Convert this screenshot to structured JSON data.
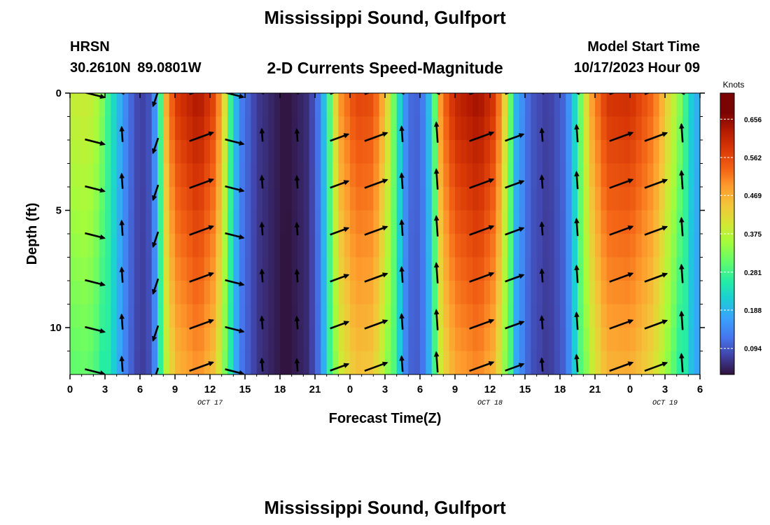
{
  "header": {
    "title": "Mississippi Sound, Gulfport",
    "station": "HRSN",
    "coords": "30.2610N  89.0801W",
    "subtitle": "2-D Currents Speed-Magnitude",
    "start_label": "Model Start Time",
    "start_value": "10/17/2023 Hour 09"
  },
  "footer": {
    "title": "Mississippi Sound, Gulfport"
  },
  "chart_data": {
    "type": "heatmap",
    "title": "2-D Currents Speed-Magnitude",
    "xlabel": "Forecast Time(Z)",
    "ylabel": "Depth (ft)",
    "x_ticks": [
      "0",
      "3",
      "6",
      "9",
      "12",
      "15",
      "18",
      "21",
      "0",
      "3",
      "6",
      "9",
      "12",
      "15",
      "18",
      "21",
      "0",
      "3",
      "6"
    ],
    "date_labels": [
      {
        "text": "OCT 17",
        "hours_from_start": 12
      },
      {
        "text": "OCT 18",
        "hours_from_start": 36
      },
      {
        "text": "OCT 19",
        "hours_from_start": 51
      }
    ],
    "x_range_hours": [
      0,
      54
    ],
    "y_ticks": [
      "0",
      "5",
      "10"
    ],
    "ylim": [
      0,
      12
    ],
    "y_inverted": true,
    "colorbar": {
      "label": "Knots",
      "ticks": [
        "0.656",
        "0.562",
        "0.469",
        "0.375",
        "0.281",
        "0.188",
        "0.094"
      ],
      "range": [
        0.03,
        0.72
      ]
    },
    "speed_profile": [
      {
        "t": 0,
        "s": 0.41
      },
      {
        "t": 1.5,
        "s": 0.42
      },
      {
        "t": 2.5,
        "s": 0.38
      },
      {
        "t": 3.5,
        "s": 0.27
      },
      {
        "t": 4.2,
        "s": 0.2
      },
      {
        "t": 5,
        "s": 0.13
      },
      {
        "t": 6,
        "s": 0.07
      },
      {
        "t": 7,
        "s": 0.1
      },
      {
        "t": 7.6,
        "s": 0.24
      },
      {
        "t": 8.2,
        "s": 0.5
      },
      {
        "t": 9,
        "s": 0.62
      },
      {
        "t": 11,
        "s": 0.68
      },
      {
        "t": 12.5,
        "s": 0.6
      },
      {
        "t": 13.2,
        "s": 0.45
      },
      {
        "t": 13.8,
        "s": 0.28
      },
      {
        "t": 14.5,
        "s": 0.15
      },
      {
        "t": 16,
        "s": 0.07
      },
      {
        "t": 18.5,
        "s": 0.03
      },
      {
        "t": 20.5,
        "s": 0.06
      },
      {
        "t": 21.5,
        "s": 0.15
      },
      {
        "t": 22.2,
        "s": 0.3
      },
      {
        "t": 23,
        "s": 0.52
      },
      {
        "t": 24.5,
        "s": 0.61
      },
      {
        "t": 26,
        "s": 0.6
      },
      {
        "t": 27.2,
        "s": 0.46
      },
      {
        "t": 28,
        "s": 0.28
      },
      {
        "t": 28.8,
        "s": 0.15
      },
      {
        "t": 29.5,
        "s": 0.1
      },
      {
        "t": 30.5,
        "s": 0.15
      },
      {
        "t": 31.2,
        "s": 0.3
      },
      {
        "t": 31.8,
        "s": 0.55
      },
      {
        "t": 33,
        "s": 0.65
      },
      {
        "t": 35,
        "s": 0.69
      },
      {
        "t": 36.5,
        "s": 0.62
      },
      {
        "t": 37.4,
        "s": 0.42
      },
      {
        "t": 38.2,
        "s": 0.2
      },
      {
        "t": 39.5,
        "s": 0.1
      },
      {
        "t": 41,
        "s": 0.07
      },
      {
        "t": 42.5,
        "s": 0.12
      },
      {
        "t": 43.5,
        "s": 0.28
      },
      {
        "t": 44.5,
        "s": 0.5
      },
      {
        "t": 46,
        "s": 0.63
      },
      {
        "t": 48,
        "s": 0.64
      },
      {
        "t": 50,
        "s": 0.57
      },
      {
        "t": 51.3,
        "s": 0.45
      },
      {
        "t": 52.5,
        "s": 0.33
      },
      {
        "t": 53.3,
        "s": 0.22
      },
      {
        "t": 54,
        "s": 0.18
      }
    ],
    "vectors_hours": [
      1.5,
      4.5,
      7.5,
      10.5,
      13.5,
      16.5,
      19.5,
      22.5,
      25.5,
      28.5,
      31.5,
      34.5,
      37.5,
      40.5,
      43.5,
      46.5,
      49.5,
      52.5
    ],
    "vectors_depths_ft": [
      0,
      2,
      4,
      6,
      8,
      10,
      11.8
    ]
  }
}
